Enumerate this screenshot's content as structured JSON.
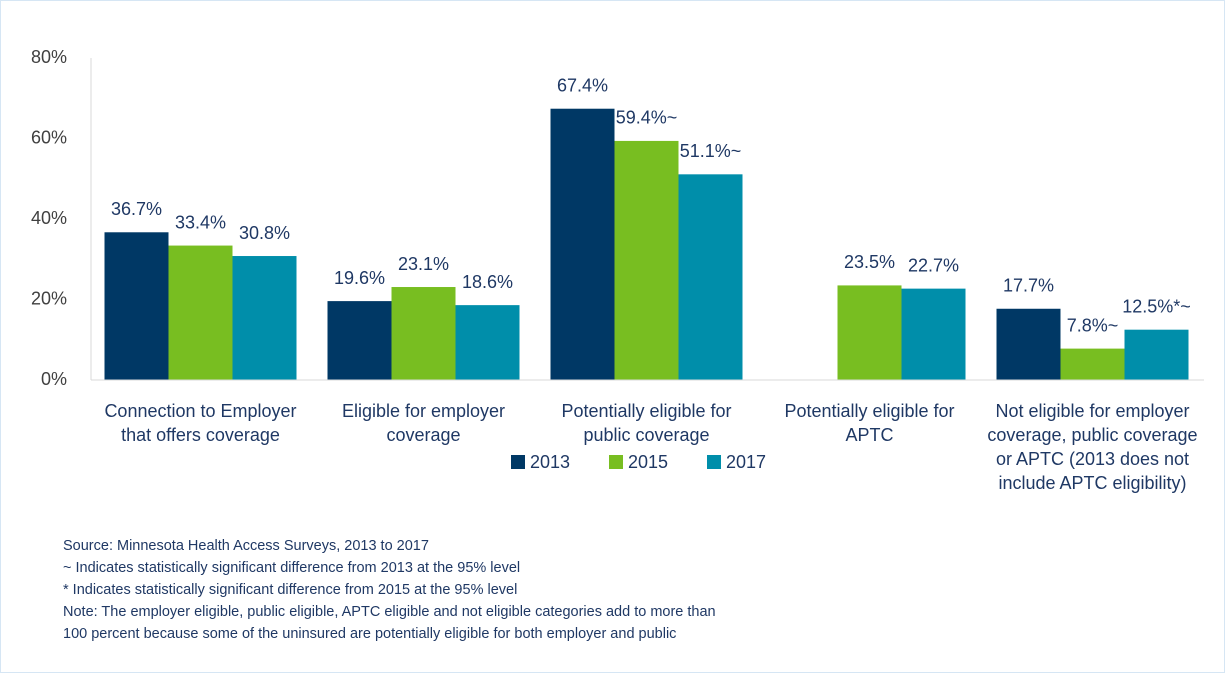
{
  "chart_data": {
    "type": "bar",
    "categories": [
      "Connection to Employer that offers coverage",
      "Eligible for employer coverage",
      "Potentially eligible for public coverage",
      "Potentially eligible for APTC",
      "Not eligible for employer coverage, public coverage or APTC (2013 does not include APTC eligibility)"
    ],
    "series": [
      {
        "name": "2013",
        "color": "#003865",
        "values": [
          36.7,
          19.6,
          67.4,
          null,
          17.7
        ],
        "value_labels": [
          "36.7%",
          "19.6%",
          "67.4%",
          null,
          "17.7%"
        ]
      },
      {
        "name": "2015",
        "color": "#78be21",
        "values": [
          33.4,
          23.1,
          59.4,
          23.5,
          7.8
        ],
        "value_labels": [
          "33.4%",
          "23.1%",
          "59.4%~",
          "23.5%",
          "7.8%~"
        ]
      },
      {
        "name": "2017",
        "color": "#008eaa",
        "values": [
          30.8,
          18.6,
          51.1,
          22.7,
          12.5
        ],
        "value_labels": [
          "30.8%",
          "18.6%",
          "51.1%~",
          "22.7%",
          "12.5%*~"
        ]
      }
    ],
    "ylim": [
      0,
      80
    ],
    "yticks": [
      {
        "value": 0,
        "label": "0%"
      },
      {
        "value": 20,
        "label": "20%"
      },
      {
        "value": 40,
        "label": "40%"
      },
      {
        "value": 60,
        "label": "60%"
      },
      {
        "value": 80,
        "label": "80%"
      }
    ],
    "legend": "bottom",
    "notes": [
      "Source: Minnesota Health Access Surveys, 2013 to 2017",
      "~ Indicates statistically significant difference from 2013 at the 95% level",
      "* Indicates statistically significant difference from 2015 at the 95% level",
      "Note: The employer eligible, public eligible, APTC eligible and not eligible categories add to more than",
      "100 percent because some of the uninsured are potentially eligible for both employer and public"
    ]
  }
}
